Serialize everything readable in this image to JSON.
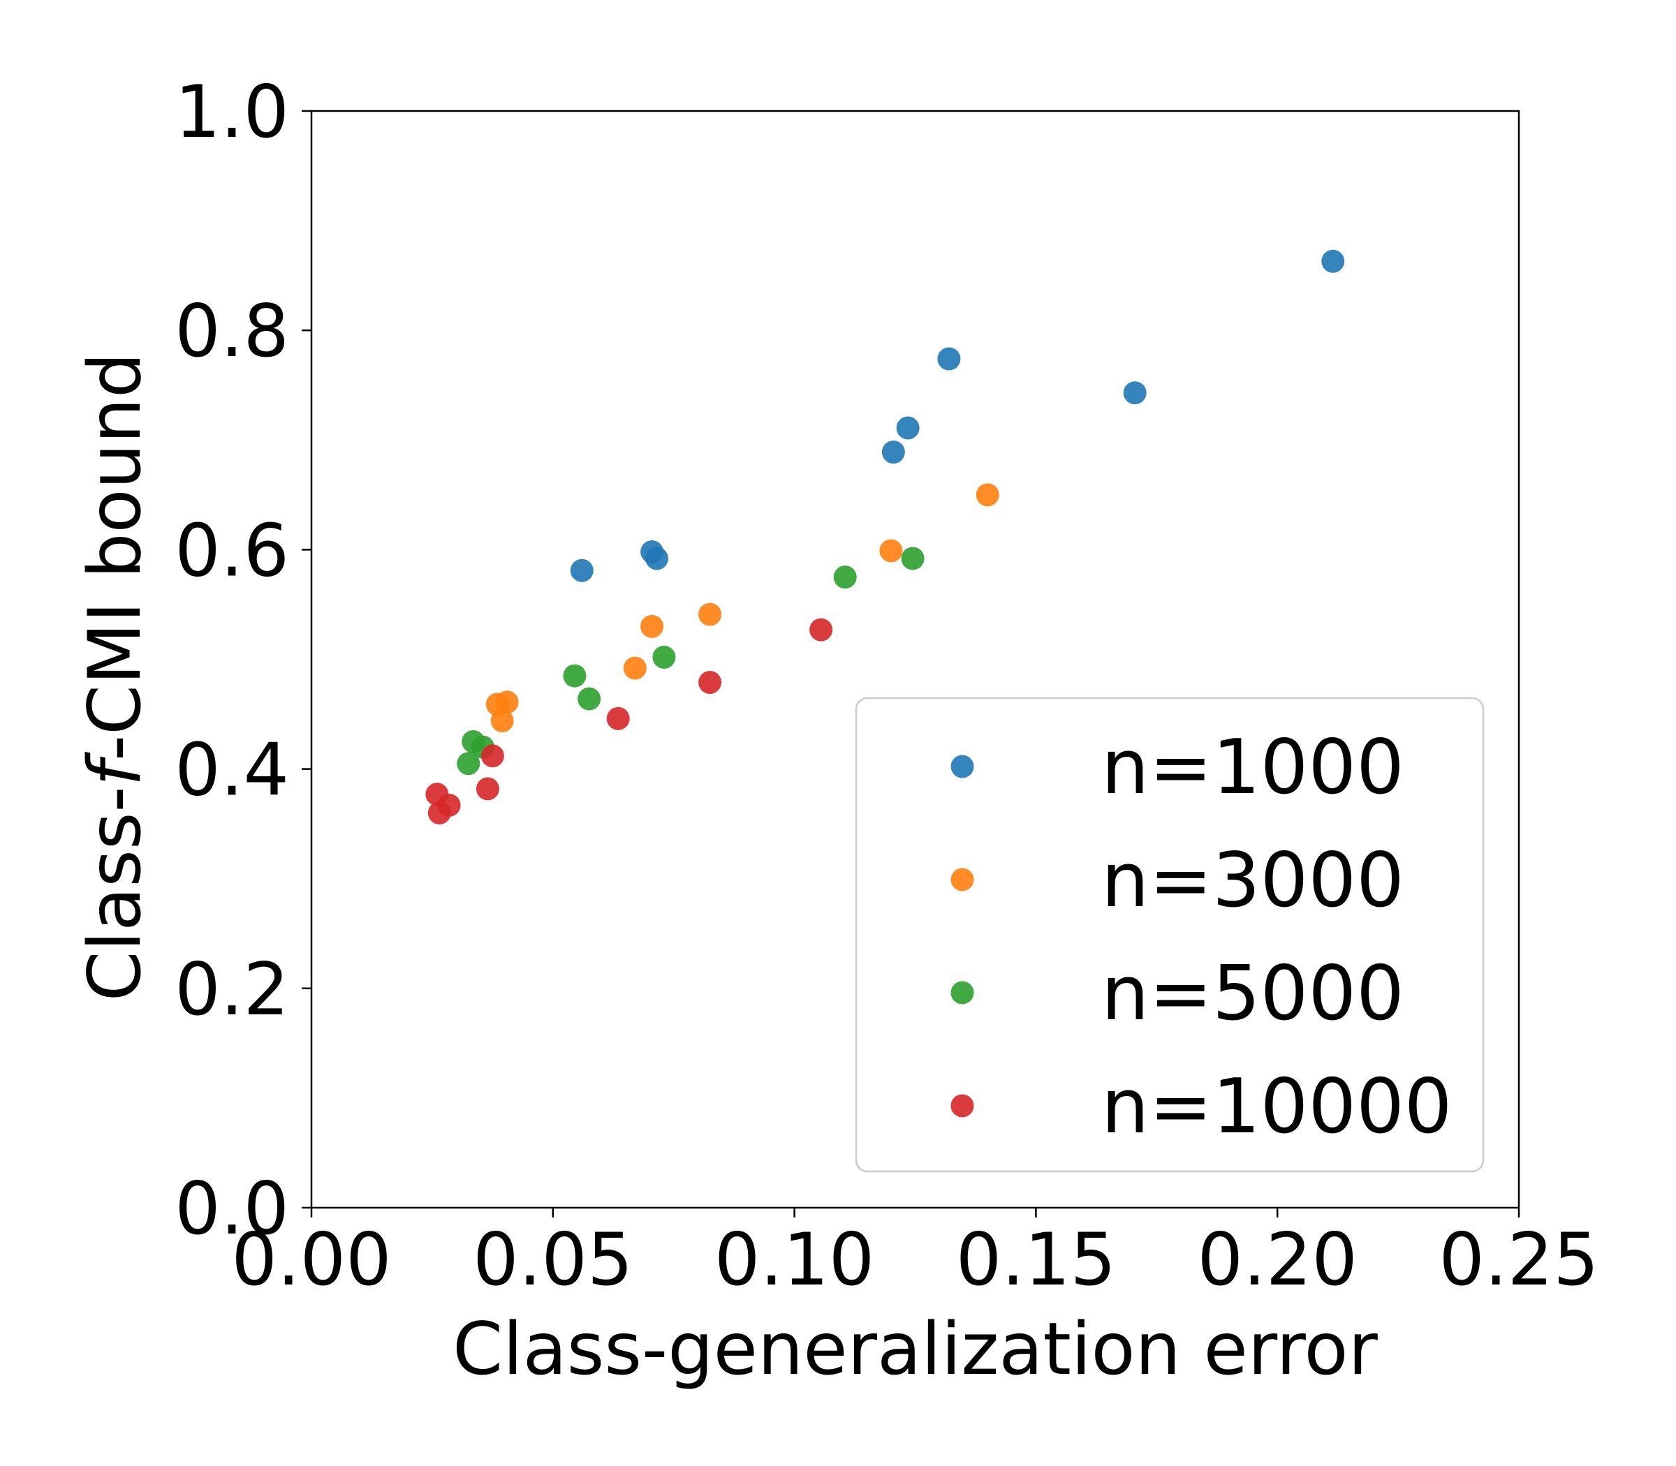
{
  "chart_data": {
    "type": "scatter",
    "title": "",
    "xlabel": "Class-generalization error",
    "ylabel": {
      "prefix": "Class-",
      "symbol": "f",
      "suffix": "-CMI bound"
    },
    "xlim": [
      0.0,
      0.25
    ],
    "ylim": [
      0.0,
      1.0
    ],
    "xticks": [
      "0.00",
      "0.05",
      "0.10",
      "0.15",
      "0.20",
      "0.25"
    ],
    "yticks": [
      "0.0",
      "0.2",
      "0.4",
      "0.6",
      "0.8",
      "1.0"
    ],
    "grid": false,
    "legend_position": "lower-right",
    "series": [
      {
        "name": "n=1000",
        "color": "#1f77b4",
        "x": [
          0.056,
          0.0705,
          0.0715,
          0.1205,
          0.1235,
          0.132,
          0.1705,
          0.2115
        ],
        "y": [
          0.581,
          0.598,
          0.592,
          0.689,
          0.711,
          0.774,
          0.743,
          0.863
        ]
      },
      {
        "name": "n=3000",
        "color": "#ff7f0e",
        "x": [
          0.0385,
          0.0395,
          0.0405,
          0.067,
          0.0705,
          0.0825,
          0.12,
          0.14
        ],
        "y": [
          0.459,
          0.444,
          0.461,
          0.492,
          0.53,
          0.541,
          0.599,
          0.65
        ]
      },
      {
        "name": "n=5000",
        "color": "#2ca02c",
        "x": [
          0.0325,
          0.0335,
          0.0355,
          0.0545,
          0.0575,
          0.073,
          0.1105,
          0.1245
        ],
        "y": [
          0.405,
          0.425,
          0.42,
          0.485,
          0.464,
          0.502,
          0.575,
          0.592
        ]
      },
      {
        "name": "n=10000",
        "color": "#d62728",
        "x": [
          0.026,
          0.0265,
          0.0285,
          0.0365,
          0.0375,
          0.0635,
          0.0825,
          0.1055
        ],
        "y": [
          0.377,
          0.36,
          0.367,
          0.382,
          0.412,
          0.446,
          0.479,
          0.527
        ]
      }
    ]
  }
}
